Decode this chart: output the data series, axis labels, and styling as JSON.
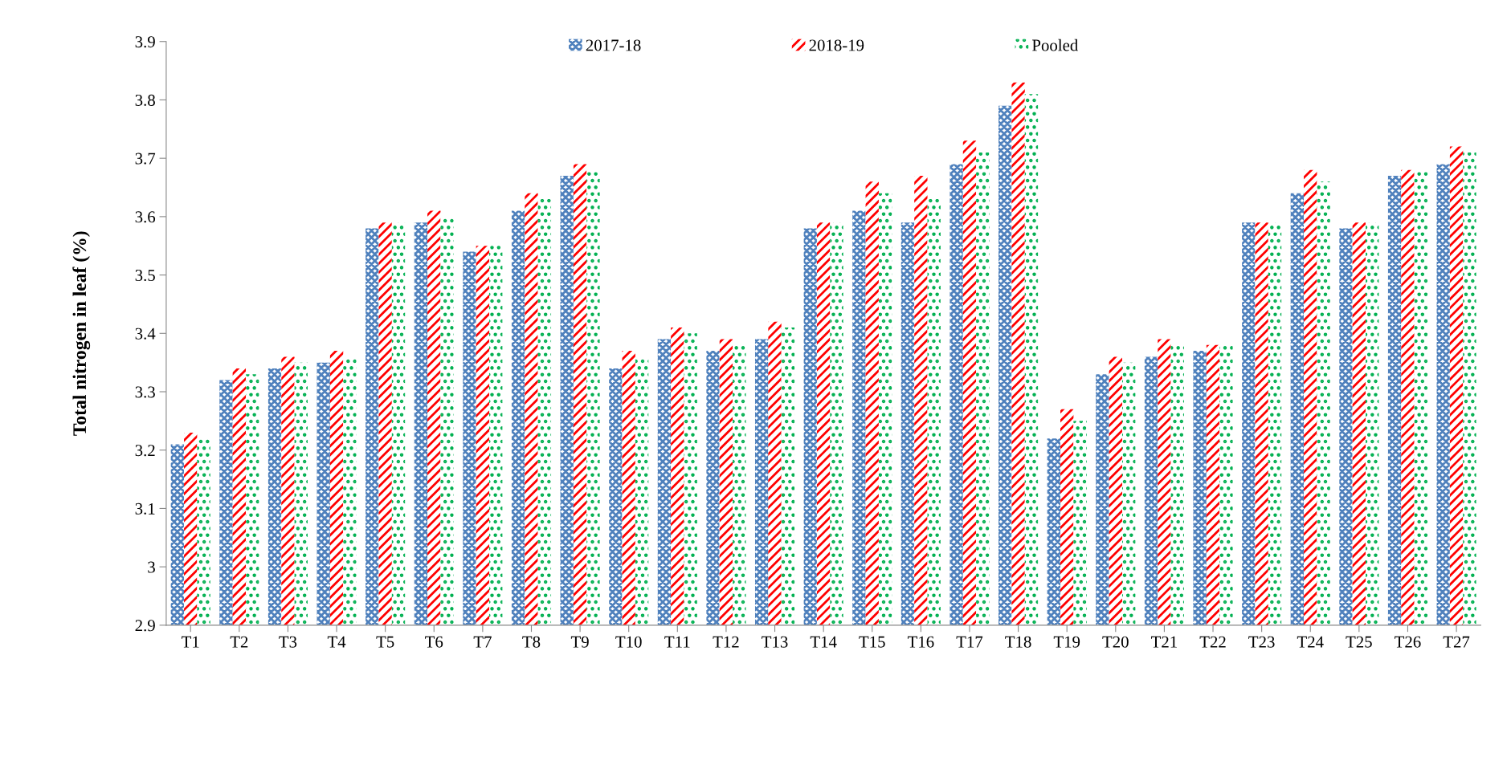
{
  "chart_data": {
    "type": "bar",
    "ylabel": "Total nitrogen in leaf (%)",
    "categories": [
      "T1",
      "T2",
      "T3",
      "T4",
      "T5",
      "T6",
      "T7",
      "T8",
      "T9",
      "T10",
      "T11",
      "T12",
      "T13",
      "T14",
      "T15",
      "T16",
      "T17",
      "T18",
      "T19",
      "T20",
      "T21",
      "T22",
      "T23",
      "T24",
      "T25",
      "T26",
      "T27"
    ],
    "series": [
      {
        "name": "2017-18",
        "color": "#4f81bd",
        "values": [
          3.21,
          3.32,
          3.34,
          3.35,
          3.58,
          3.59,
          3.54,
          3.61,
          3.67,
          3.34,
          3.39,
          3.37,
          3.39,
          3.58,
          3.61,
          3.59,
          3.69,
          3.79,
          3.22,
          3.33,
          3.36,
          3.37,
          3.59,
          3.64,
          3.58,
          3.67,
          3.69
        ]
      },
      {
        "name": "2018-19",
        "color": "#ff0000",
        "values": [
          3.23,
          3.34,
          3.36,
          3.37,
          3.59,
          3.61,
          3.55,
          3.64,
          3.69,
          3.37,
          3.41,
          3.39,
          3.42,
          3.59,
          3.66,
          3.67,
          3.73,
          3.83,
          3.27,
          3.36,
          3.39,
          3.38,
          3.59,
          3.68,
          3.59,
          3.68,
          3.72
        ]
      },
      {
        "name": "Pooled",
        "color": "#00b050",
        "values": [
          3.22,
          3.33,
          3.35,
          3.36,
          3.59,
          3.6,
          3.55,
          3.63,
          3.68,
          3.36,
          3.4,
          3.38,
          3.41,
          3.59,
          3.64,
          3.63,
          3.71,
          3.81,
          3.25,
          3.35,
          3.38,
          3.38,
          3.59,
          3.66,
          3.59,
          3.68,
          3.71
        ]
      }
    ],
    "ylim": [
      2.9,
      3.9
    ],
    "yticks": [
      2.9,
      3,
      3.1,
      3.2,
      3.3,
      3.4,
      3.5,
      3.6,
      3.7,
      3.8,
      3.9
    ],
    "grid": false,
    "legend": "top"
  }
}
